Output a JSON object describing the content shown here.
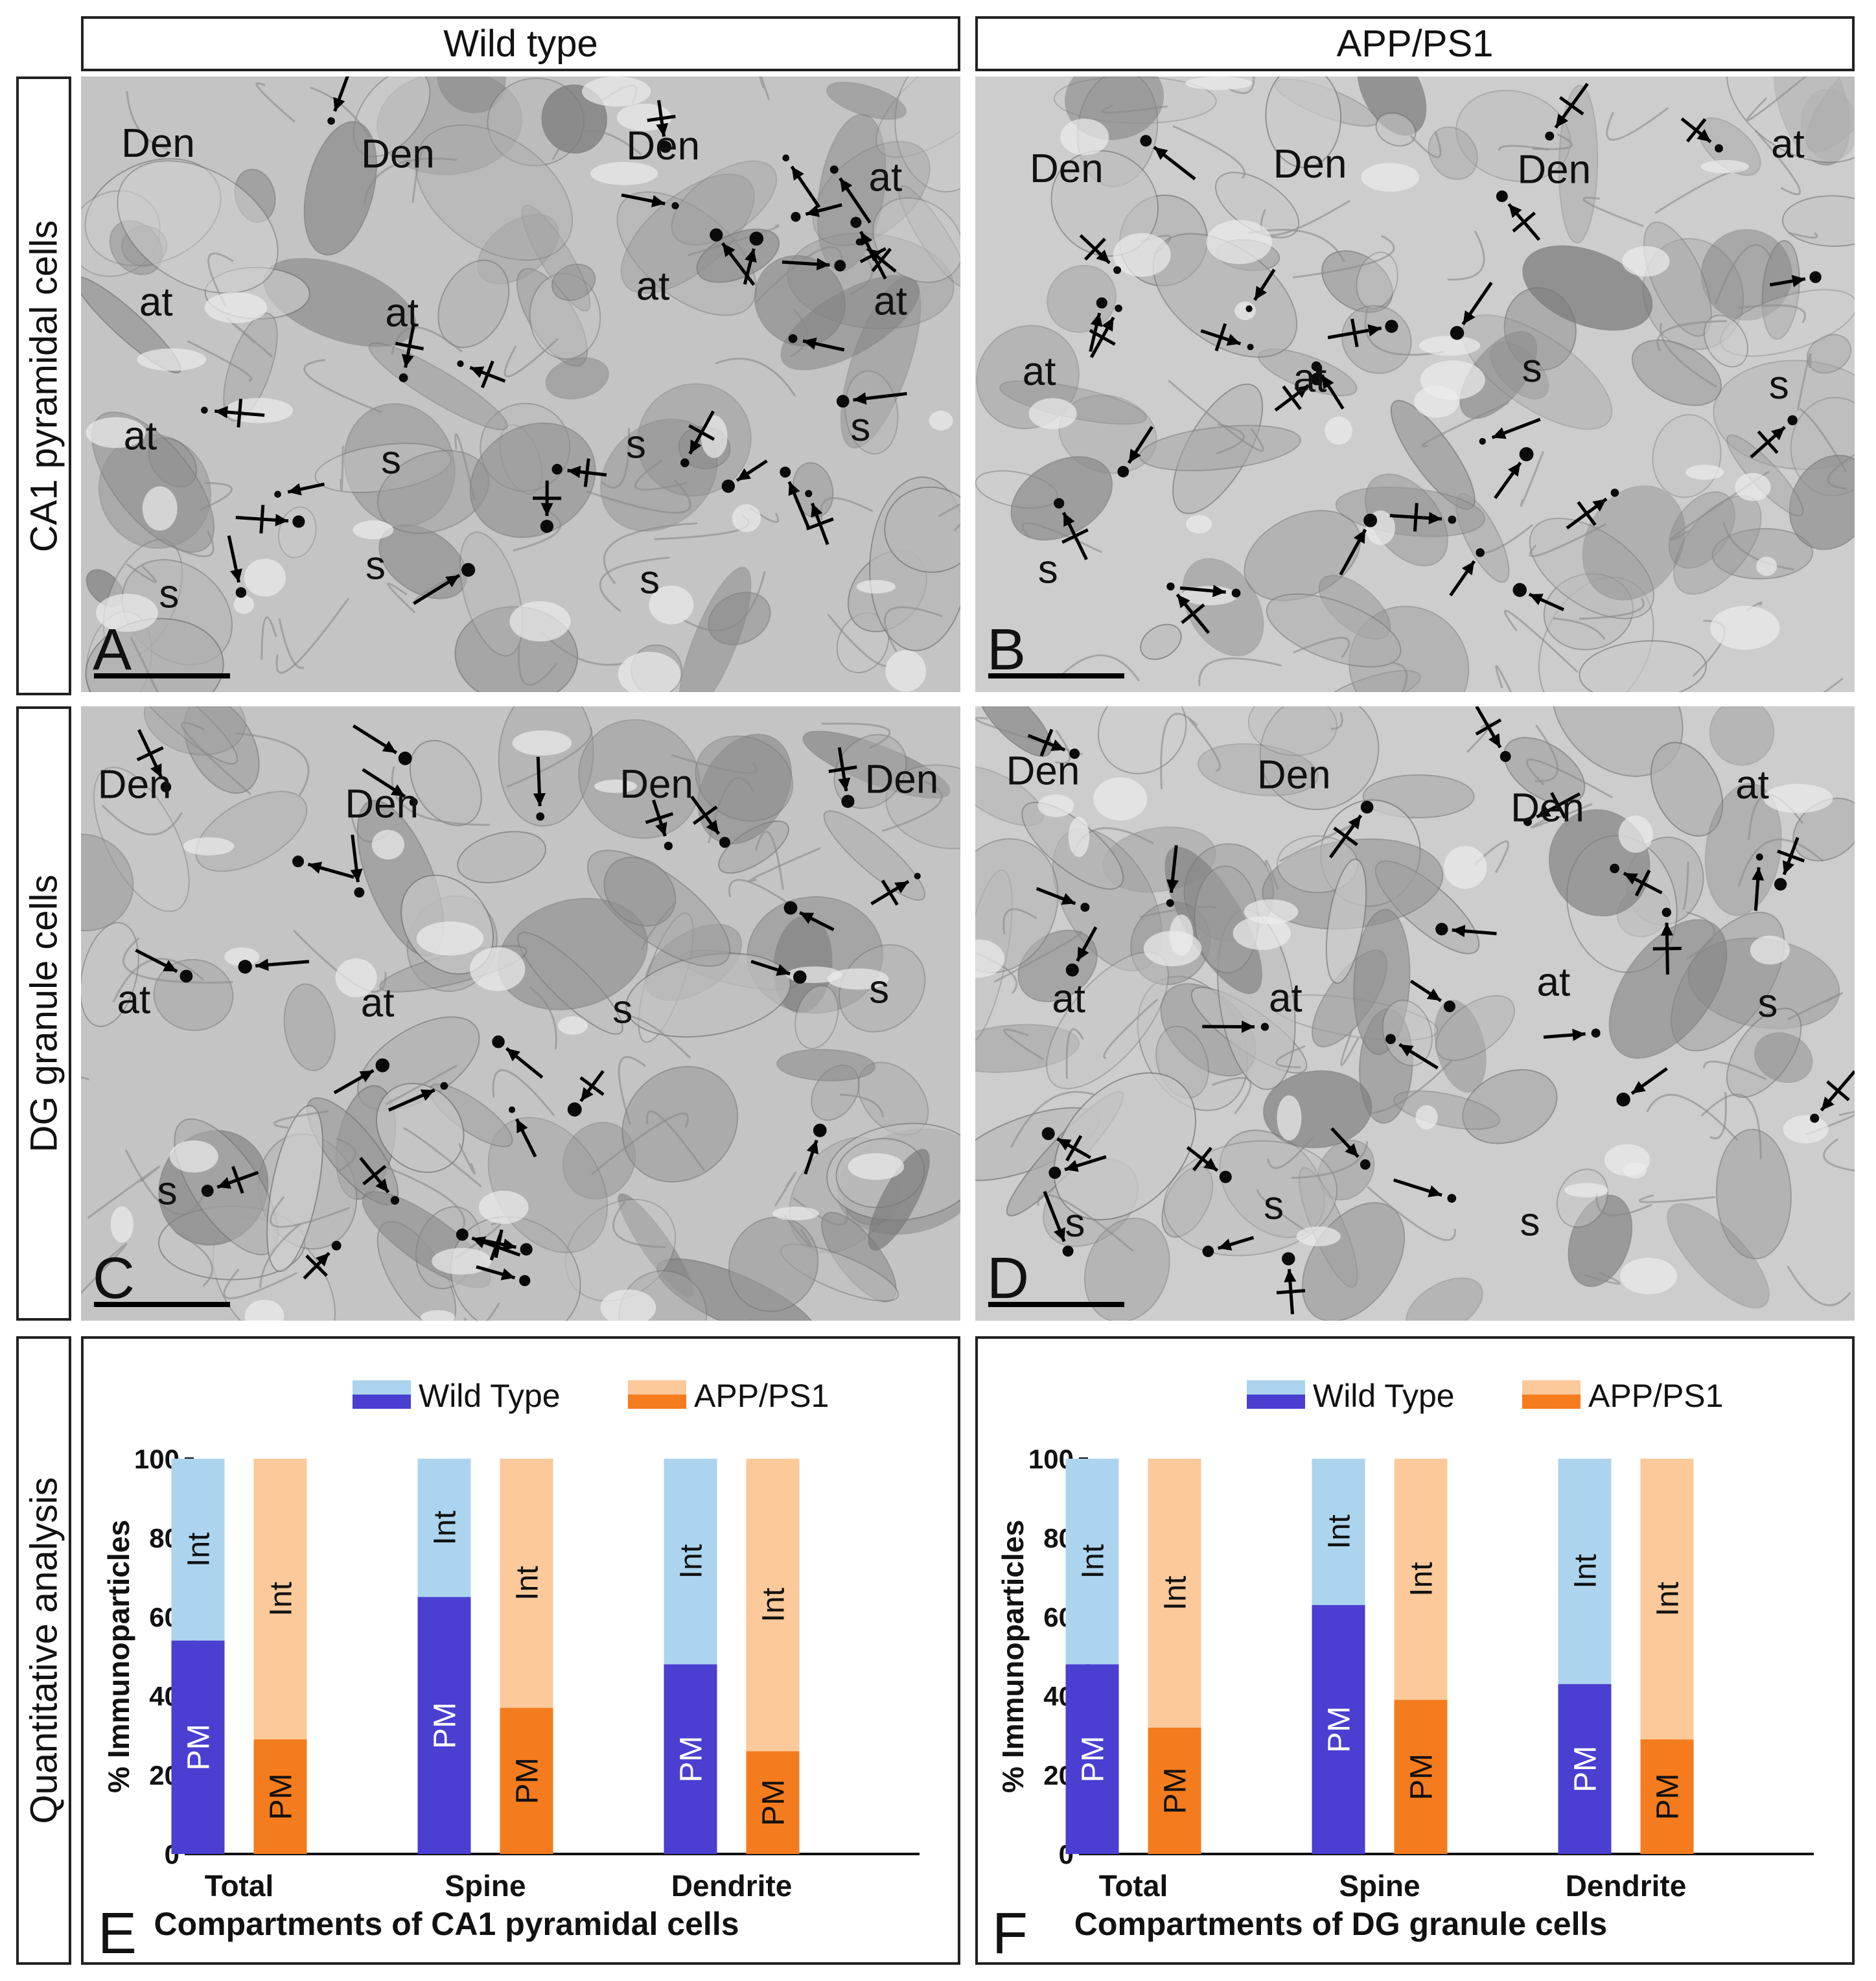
{
  "figure": {
    "column_headers": [
      "Wild type",
      "APP/PS1"
    ],
    "row_headers": [
      "CA1 pyramidal cells",
      "DG granule cells",
      "Quantitative analysis"
    ],
    "panel_letters": [
      "A",
      "B",
      "C",
      "D",
      "E",
      "F"
    ],
    "em_labels": {
      "A": [
        "Den",
        "Den",
        "Den",
        "at",
        "at",
        "at",
        "at",
        "at",
        "at",
        "s",
        "s",
        "s",
        "s",
        "s",
        "s"
      ],
      "B": [
        "Den",
        "Den",
        "Den",
        "at",
        "at",
        "at",
        "s",
        "s",
        "s"
      ],
      "C": [
        "Den",
        "Den",
        "Den",
        "Den",
        "at",
        "at",
        "s",
        "s",
        "s"
      ],
      "D": [
        "Den",
        "Den",
        "Den",
        "at",
        "at",
        "at",
        "at",
        "s",
        "s",
        "s",
        "s"
      ]
    },
    "colors": {
      "wild_type_pm": "#4a3fd0",
      "wild_type_int": "#acd4ee",
      "app_ps1_pm": "#f47c1e",
      "app_ps1_int": "#fbc99a",
      "em_background": "#c9c9c9"
    }
  },
  "chart_data": [
    {
      "panel": "E",
      "type": "bar",
      "stacked": true,
      "xlabel": "Compartments of CA1 pyramidal cells",
      "ylabel": "% Immunoparticles",
      "ylim": [
        0,
        100
      ],
      "yticks": [
        0,
        20,
        40,
        60,
        80,
        100
      ],
      "categories": [
        "Total",
        "Spine",
        "Dendrite"
      ],
      "legend": [
        "Wild Type",
        "APP/PS1"
      ],
      "segment_labels": [
        "PM",
        "Int"
      ],
      "series": [
        {
          "name": "Wild Type",
          "PM": [
            54,
            65,
            48
          ],
          "Int": [
            46,
            35,
            52
          ]
        },
        {
          "name": "APP/PS1",
          "PM": [
            29,
            37,
            26
          ],
          "Int": [
            71,
            63,
            74
          ]
        }
      ]
    },
    {
      "panel": "F",
      "type": "bar",
      "stacked": true,
      "xlabel": "Compartments of DG granule cells",
      "ylabel": "% Immunoparticles",
      "ylim": [
        0,
        100
      ],
      "yticks": [
        0,
        20,
        40,
        60,
        80,
        100
      ],
      "categories": [
        "Total",
        "Spine",
        "Dendrite"
      ],
      "legend": [
        "Wild Type",
        "APP/PS1"
      ],
      "segment_labels": [
        "PM",
        "Int"
      ],
      "series": [
        {
          "name": "Wild Type",
          "PM": [
            48,
            63,
            43
          ],
          "Int": [
            52,
            37,
            57
          ]
        },
        {
          "name": "APP/PS1",
          "PM": [
            32,
            39,
            29
          ],
          "Int": [
            68,
            61,
            71
          ]
        }
      ]
    }
  ]
}
